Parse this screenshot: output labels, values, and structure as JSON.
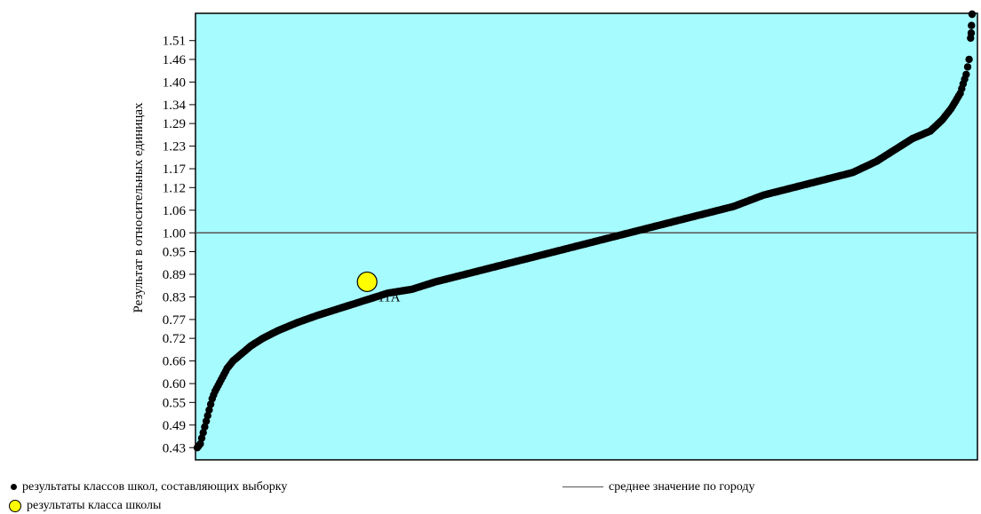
{
  "chart_data": {
    "type": "scatter",
    "ylabel": "Результат в относительных единицах",
    "xlabel": "",
    "yticks": [
      "0.43",
      "0.49",
      "0.55",
      "0.60",
      "0.66",
      "0.72",
      "0.77",
      "0.83",
      "0.89",
      "0.95",
      "1.00",
      "1.06",
      "1.12",
      "1.17",
      "1.23",
      "1.29",
      "1.34",
      "1.40",
      "1.46",
      "1.51"
    ],
    "ylim": [
      0.4,
      1.58
    ],
    "xlim": [
      0,
      260
    ],
    "background_color": "#a6fbff",
    "reference_line": {
      "y": 1.0,
      "color": "#555555"
    },
    "series": [
      {
        "key": "city_classes",
        "color": "#000000",
        "points": [
          [
            0,
            0.43
          ],
          [
            1,
            0.44
          ],
          [
            2,
            0.47
          ],
          [
            3,
            0.5
          ],
          [
            4,
            0.53
          ],
          [
            5,
            0.56
          ],
          [
            6,
            0.58
          ],
          [
            8,
            0.61
          ],
          [
            10,
            0.64
          ],
          [
            12,
            0.66
          ],
          [
            15,
            0.68
          ],
          [
            18,
            0.7
          ],
          [
            22,
            0.72
          ],
          [
            27,
            0.74
          ],
          [
            33,
            0.76
          ],
          [
            40,
            0.78
          ],
          [
            48,
            0.8
          ],
          [
            56,
            0.82
          ],
          [
            64,
            0.84
          ],
          [
            72,
            0.85
          ],
          [
            80,
            0.87
          ],
          [
            90,
            0.89
          ],
          [
            100,
            0.91
          ],
          [
            110,
            0.93
          ],
          [
            120,
            0.95
          ],
          [
            130,
            0.97
          ],
          [
            140,
            0.99
          ],
          [
            150,
            1.01
          ],
          [
            160,
            1.03
          ],
          [
            170,
            1.05
          ],
          [
            180,
            1.07
          ],
          [
            190,
            1.1
          ],
          [
            200,
            1.12
          ],
          [
            210,
            1.14
          ],
          [
            220,
            1.16
          ],
          [
            228,
            1.19
          ],
          [
            234,
            1.22
          ],
          [
            240,
            1.25
          ],
          [
            246,
            1.27
          ],
          [
            250,
            1.3
          ],
          [
            253,
            1.33
          ],
          [
            256,
            1.37
          ],
          [
            258,
            1.42
          ],
          [
            259,
            1.46
          ],
          [
            259.4,
            1.51
          ],
          [
            259.7,
            1.53
          ],
          [
            260,
            1.58
          ]
        ]
      }
    ],
    "highlight": {
      "x": 57,
      "y": 0.87,
      "label": "11A",
      "color": "#ffff00"
    },
    "legend": [
      {
        "symbol": "dot",
        "label": "результаты классов школ, составляющих выборку"
      },
      {
        "symbol": "circle",
        "label": "результаты класса школы"
      },
      {
        "symbol": "line",
        "label": "среднее значение по городу"
      }
    ]
  }
}
